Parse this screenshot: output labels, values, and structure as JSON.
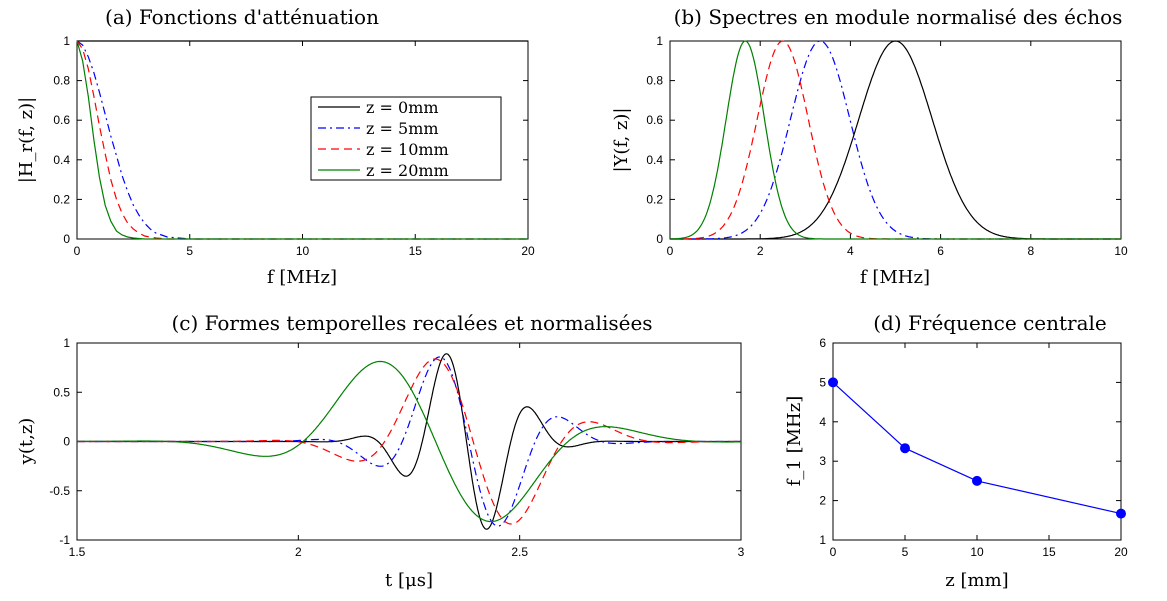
{
  "colors": {
    "z0": "#000000",
    "z5": "#0000ff",
    "z10": "#ff0000",
    "z20": "#008000",
    "marker": "#0000ff"
  },
  "chart_data": [
    {
      "id": "a",
      "type": "line",
      "title": "(a) Fonctions d'atténuation",
      "xlabel": "f [MHz]",
      "ylabel": "|H_r(f, z)|",
      "xlim": [
        0,
        20
      ],
      "ylim": [
        0,
        1
      ],
      "xticks": [
        0,
        5,
        10,
        15,
        20
      ],
      "yticks": [
        0,
        0.2,
        0.4,
        0.6,
        0.8,
        1
      ],
      "legend": {
        "placement": "center-right",
        "entries": [
          "z = 0mm",
          "z = 5mm",
          "z = 10mm",
          "z = 20mm"
        ]
      },
      "series": [
        {
          "name": "z = 0mm",
          "style": "solid",
          "color": "#000000",
          "x": [
            0,
            20
          ],
          "y": [
            1,
            1
          ]
        },
        {
          "name": "z = 5mm",
          "style": "dashdot",
          "color": "#0000ff",
          "x": [
            0,
            0.25,
            0.5,
            0.75,
            1,
            1.25,
            1.5,
            1.75,
            2,
            2.25,
            2.5,
            2.75,
            3,
            3.25,
            3.5,
            3.75,
            4,
            4.5,
            5,
            6,
            20
          ],
          "y": [
            1,
            0.98,
            0.92,
            0.84,
            0.74,
            0.63,
            0.52,
            0.42,
            0.32,
            0.24,
            0.17,
            0.12,
            0.08,
            0.05,
            0.03,
            0.02,
            0.01,
            0.005,
            0,
            0,
            0
          ]
        },
        {
          "name": "z = 10mm",
          "style": "dashed",
          "color": "#ff0000",
          "x": [
            0,
            0.25,
            0.5,
            0.75,
            1,
            1.25,
            1.5,
            1.75,
            2,
            2.25,
            2.5,
            2.75,
            3,
            3.5,
            4,
            5,
            20
          ],
          "y": [
            1,
            0.96,
            0.86,
            0.72,
            0.57,
            0.43,
            0.3,
            0.2,
            0.13,
            0.08,
            0.05,
            0.03,
            0.015,
            0.005,
            0,
            0,
            0
          ]
        },
        {
          "name": "z = 20mm",
          "style": "solid",
          "color": "#008000",
          "x": [
            0,
            0.25,
            0.5,
            0.75,
            1,
            1.25,
            1.5,
            1.75,
            2,
            2.25,
            2.5,
            3,
            20
          ],
          "y": [
            1,
            0.9,
            0.72,
            0.5,
            0.31,
            0.17,
            0.09,
            0.04,
            0.02,
            0.01,
            0.005,
            0,
            0
          ]
        }
      ]
    },
    {
      "id": "b",
      "type": "line",
      "title": "(b) Spectres en module normalisé des échos",
      "xlabel": "f [MHz]",
      "ylabel": "|Y(f, z)|",
      "xlim": [
        0,
        10
      ],
      "ylim": [
        0,
        1
      ],
      "xticks": [
        0,
        2,
        4,
        6,
        8,
        10
      ],
      "yticks": [
        0,
        0.2,
        0.4,
        0.6,
        0.8,
        1
      ],
      "series": [
        {
          "name": "z = 0mm",
          "style": "solid",
          "color": "#000000",
          "peak": 5.0,
          "width": 1.15
        },
        {
          "name": "z = 5mm",
          "style": "dashdot",
          "color": "#0000ff",
          "peak": 3.33,
          "width": 0.93
        },
        {
          "name": "z = 10mm",
          "style": "dashed",
          "color": "#ff0000",
          "peak": 2.5,
          "width": 0.8
        },
        {
          "name": "z = 20mm",
          "style": "solid",
          "color": "#008000",
          "peak": 1.67,
          "width": 0.6
        }
      ]
    },
    {
      "id": "c",
      "type": "line",
      "title": "(c) Formes temporelles recalées et normalisées",
      "xlabel": "t [μs]",
      "ylabel": "y(t,z)",
      "xlim": [
        1.5,
        3
      ],
      "ylim": [
        -1,
        1
      ],
      "xticks": [
        1.5,
        2,
        2.5,
        3
      ],
      "yticks": [
        -1,
        -0.5,
        0,
        0.5,
        1
      ],
      "series": [
        {
          "name": "z = 0mm",
          "style": "solid",
          "color": "#000000",
          "freq": 5.0,
          "center": 2.38,
          "sigma": 0.14
        },
        {
          "name": "z = 5mm",
          "style": "dashdot",
          "color": "#0000ff",
          "freq": 3.33,
          "center": 2.385,
          "sigma": 0.18
        },
        {
          "name": "z = 10mm",
          "style": "dashed",
          "color": "#ff0000",
          "freq": 2.5,
          "center": 2.395,
          "sigma": 0.22
        },
        {
          "name": "z = 20mm",
          "style": "solid",
          "color": "#008000",
          "freq": 1.67,
          "center": 2.31,
          "sigma": 0.3
        }
      ]
    },
    {
      "id": "d",
      "type": "line",
      "title": "(d) Fréquence centrale",
      "xlabel": "z [mm]",
      "ylabel": "f_1 [MHz]",
      "xlim": [
        0,
        20
      ],
      "ylim": [
        1,
        6
      ],
      "xticks": [
        0,
        5,
        10,
        15,
        20
      ],
      "yticks": [
        1,
        2,
        3,
        4,
        5,
        6
      ],
      "series": [
        {
          "name": "",
          "style": "solid-markers",
          "color": "#0000ff",
          "x": [
            0,
            5,
            10,
            20
          ],
          "y": [
            5.0,
            3.33,
            2.5,
            1.67
          ]
        }
      ]
    }
  ]
}
